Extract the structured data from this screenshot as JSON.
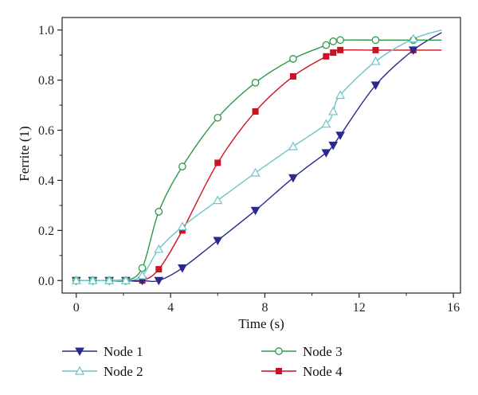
{
  "chart_data": {
    "type": "line",
    "title": "",
    "xlabel": "Time (s)",
    "ylabel": "Ferrite (1)",
    "xlim": [
      -0.6,
      16.3
    ],
    "ylim": [
      -0.05,
      1.05
    ],
    "xticks": [
      "0",
      "4",
      "8",
      "12",
      "16"
    ],
    "yticks": [
      "0.0",
      "0.2",
      "0.4",
      "0.6",
      "0.8",
      "1.0"
    ],
    "grid": false,
    "legend_position": "bottom",
    "series": [
      {
        "name": "Node 1",
        "color": "#2a2a8c",
        "marker": "triangle-down-filled",
        "x": [
          0,
          0.7,
          1.4,
          2.1,
          2.8,
          3.5,
          4.5,
          6.0,
          7.6,
          9.2,
          10.6,
          10.9,
          11.2,
          12.7,
          14.3,
          15.5
        ],
        "y": [
          0.0,
          0.0,
          0.0,
          0.0,
          0.0,
          0.0,
          0.05,
          0.16,
          0.28,
          0.41,
          0.51,
          0.54,
          0.58,
          0.78,
          0.92,
          0.99
        ],
        "marker_count": 15
      },
      {
        "name": "Node 2",
        "color": "#6ec3c9",
        "marker": "triangle-up-open",
        "x": [
          0,
          0.7,
          1.4,
          2.1,
          2.8,
          3.5,
          4.5,
          6.0,
          7.6,
          9.2,
          10.6,
          10.9,
          11.2,
          12.7,
          14.3,
          15.5
        ],
        "y": [
          0.0,
          0.0,
          0.0,
          0.0,
          0.02,
          0.125,
          0.215,
          0.32,
          0.43,
          0.535,
          0.625,
          0.675,
          0.74,
          0.875,
          0.965,
          1.0
        ],
        "marker_count": 15
      },
      {
        "name": "Node 3",
        "color": "#2e9a47",
        "marker": "circle-open",
        "x": [
          0,
          0.7,
          1.4,
          2.1,
          2.8,
          3.5,
          4.5,
          6.0,
          7.6,
          9.2,
          10.6,
          10.9,
          11.2,
          12.7,
          14.3,
          15.5
        ],
        "y": [
          0.0,
          0.0,
          0.0,
          0.0,
          0.05,
          0.275,
          0.455,
          0.65,
          0.79,
          0.885,
          0.94,
          0.955,
          0.96,
          0.96,
          0.96,
          0.96
        ],
        "marker_count": 15
      },
      {
        "name": "Node 4",
        "color": "#cc1122",
        "marker": "square-filled",
        "x": [
          0,
          0.7,
          1.4,
          2.1,
          2.8,
          3.5,
          4.5,
          6.0,
          7.6,
          9.2,
          10.6,
          10.9,
          11.2,
          12.7,
          14.3,
          15.5
        ],
        "y": [
          0.0,
          0.0,
          0.0,
          0.0,
          0.0,
          0.045,
          0.2,
          0.47,
          0.675,
          0.815,
          0.895,
          0.91,
          0.92,
          0.92,
          0.92,
          0.92
        ],
        "marker_count": 15
      }
    ]
  }
}
